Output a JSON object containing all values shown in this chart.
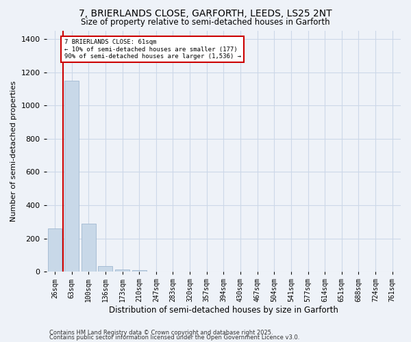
{
  "title": "7, BRIERLANDS CLOSE, GARFORTH, LEEDS, LS25 2NT",
  "subtitle": "Size of property relative to semi-detached houses in Garforth",
  "xlabel": "Distribution of semi-detached houses by size in Garforth",
  "ylabel": "Number of semi-detached properties",
  "bar_labels": [
    "26sqm",
    "63sqm",
    "100sqm",
    "136sqm",
    "173sqm",
    "210sqm",
    "247sqm",
    "283sqm",
    "320sqm",
    "357sqm",
    "394sqm",
    "430sqm",
    "467sqm",
    "504sqm",
    "541sqm",
    "577sqm",
    "614sqm",
    "651sqm",
    "688sqm",
    "724sqm",
    "761sqm"
  ],
  "bar_values": [
    260,
    1150,
    290,
    35,
    15,
    8,
    0,
    0,
    0,
    0,
    0,
    0,
    0,
    0,
    0,
    0,
    0,
    0,
    0,
    0,
    0
  ],
  "bar_color": "#c8d8e8",
  "bar_edge_color": "#a0b8d0",
  "annotation_text": "7 BRIERLANDS CLOSE: 61sqm\n← 10% of semi-detached houses are smaller (177)\n90% of semi-detached houses are larger (1,536) →",
  "annotation_box_color": "#ffffff",
  "annotation_box_edge_color": "#cc0000",
  "red_line_color": "#cc0000",
  "red_line_x": 0.5,
  "ylim": [
    0,
    1450
  ],
  "yticks": [
    0,
    200,
    400,
    600,
    800,
    1000,
    1200,
    1400
  ],
  "grid_color": "#ccd8e8",
  "background_color": "#eef2f8",
  "footer1": "Contains HM Land Registry data © Crown copyright and database right 2025.",
  "footer2": "Contains public sector information licensed under the Open Government Licence v3.0."
}
